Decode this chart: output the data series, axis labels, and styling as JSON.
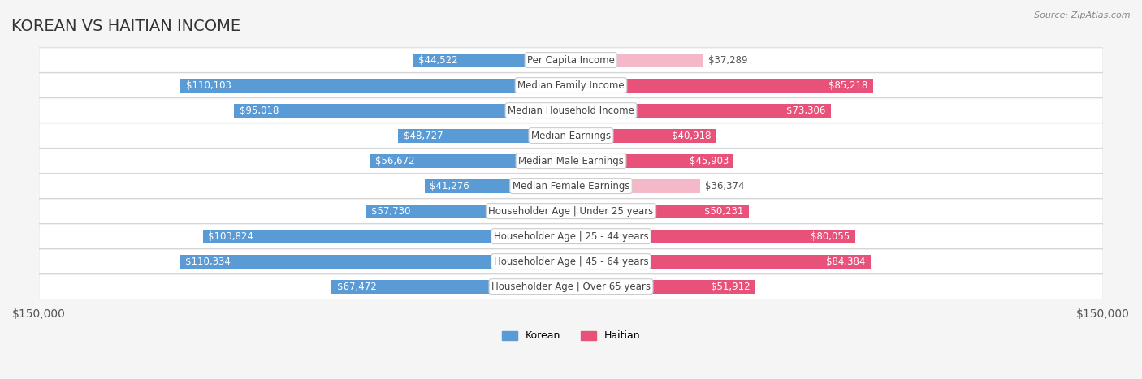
{
  "title": "KOREAN VS HAITIAN INCOME",
  "source": "Source: ZipAtlas.com",
  "categories": [
    "Per Capita Income",
    "Median Family Income",
    "Median Household Income",
    "Median Earnings",
    "Median Male Earnings",
    "Median Female Earnings",
    "Householder Age | Under 25 years",
    "Householder Age | 25 - 44 years",
    "Householder Age | 45 - 64 years",
    "Householder Age | Over 65 years"
  ],
  "korean_values": [
    44522,
    110103,
    95018,
    48727,
    56672,
    41276,
    57730,
    103824,
    110334,
    67472
  ],
  "haitian_values": [
    37289,
    85218,
    73306,
    40918,
    45903,
    36374,
    50231,
    80055,
    84384,
    51912
  ],
  "korean_labels": [
    "$44,522",
    "$110,103",
    "$95,018",
    "$48,727",
    "$56,672",
    "$41,276",
    "$57,730",
    "$103,824",
    "$110,334",
    "$67,472"
  ],
  "haitian_labels": [
    "$37,289",
    "$85,218",
    "$73,306",
    "$40,918",
    "$45,903",
    "$36,374",
    "$50,231",
    "$80,055",
    "$84,384",
    "$51,912"
  ],
  "korean_color_light": "#a8c4e0",
  "korean_color_dark": "#5b9bd5",
  "haitian_color_light": "#f4b8c8",
  "haitian_color_dark": "#e8527a",
  "max_value": 150000,
  "background_color": "#f5f5f5",
  "row_background": "#ffffff",
  "label_axis": "$150,000",
  "title_fontsize": 14,
  "axis_fontsize": 10,
  "bar_label_fontsize": 8.5,
  "category_fontsize": 8.5
}
